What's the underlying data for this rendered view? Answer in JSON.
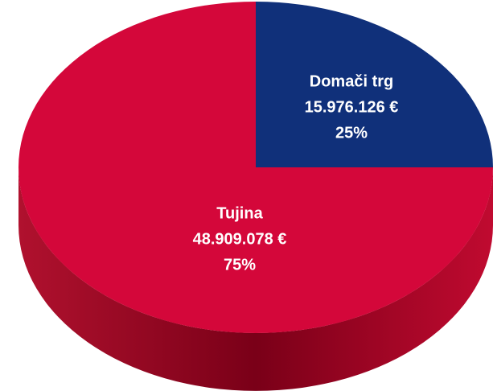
{
  "chart_data": {
    "type": "pie",
    "categories": [
      "Domači trg",
      "Tujina"
    ],
    "values": [
      25,
      75
    ],
    "value_labels": [
      "25%",
      "75%"
    ],
    "amount_labels": [
      "15.976.126  €",
      "48.909.078 €"
    ],
    "colors": [
      "#10307a",
      "#d4073a"
    ]
  }
}
